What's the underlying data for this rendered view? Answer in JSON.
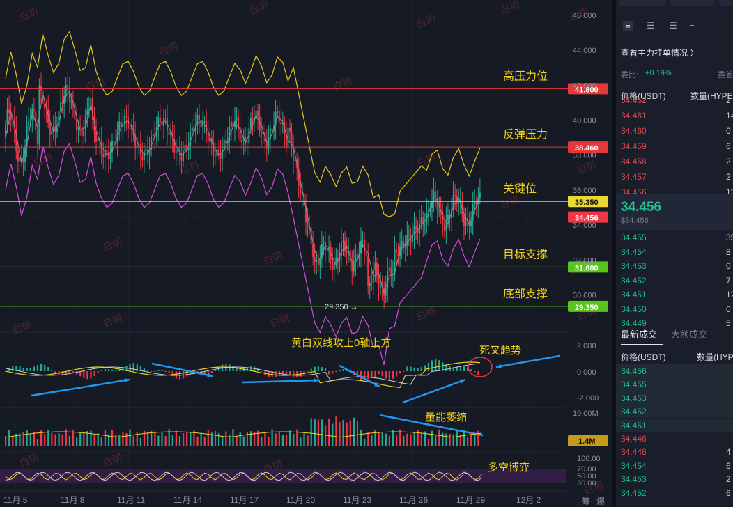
{
  "chart": {
    "price_axis": [
      "48.000",
      "46.000",
      "44.000",
      "42.000",
      "40.000",
      "38.000",
      "36.000",
      "34.000",
      "32.000",
      "30.000",
      "28.000"
    ],
    "macd_axis": [
      "2.000",
      "0.000",
      "-2.000"
    ],
    "vol_axis": [
      "10.00M"
    ],
    "rsi_axis": [
      "100.00",
      "70.00",
      "50.00",
      "30.00"
    ],
    "date_axis": [
      "11月 5",
      "11月 8",
      "11月 11",
      "11月 14",
      "11月 17",
      "11月 20",
      "11月 23",
      "11月 26",
      "11月 29",
      "12月 2"
    ],
    "corner_labels": [
      "筹",
      "爆"
    ],
    "levels": [
      {
        "name": "高压力位",
        "value": "41.800",
        "color": "#e5383b",
        "label_bg": "#e5383b"
      },
      {
        "name": "反弹压力",
        "value": "38.460",
        "color": "#e5383b",
        "label_bg": "#e5383b"
      },
      {
        "name": "关键位",
        "value": "35.350",
        "color": "#e8d830",
        "label_bg": "#e8d830"
      },
      {
        "name": "目标支撑",
        "value": "31.600",
        "color": "#5ac41e",
        "label_bg": "#5ac41e"
      },
      {
        "name": "底部支撑",
        "value": "29.350",
        "color": "#5ac41e",
        "label_bg": "#5ac41e"
      }
    ],
    "current_price_label": "34.456",
    "low_marker": "29.350",
    "volume_label": "1.4M",
    "annotations": {
      "macd_note": "黄白双线攻上0轴上方",
      "death_cross": "死叉趋势",
      "vol_note": "量能萎缩",
      "rsi_note": "多空博弈"
    },
    "watermark": "白玥",
    "colors": {
      "up": "#22ab94",
      "down": "#f23645",
      "boll_upper": "#e6c81c",
      "boll_lower": "#d94ce0",
      "boll_mid": "#8a8f9c",
      "annotation": "#f0d31a",
      "arrow": "#2196f3"
    }
  },
  "panel": {
    "tool_icons": [
      "depth-both-icon",
      "depth-bids-icon",
      "depth-asks-icon",
      "depth-expand-icon"
    ],
    "link": "查看主力挂单情况 〉",
    "weibi_label": "委比:",
    "weibi_value": "+0.19%",
    "weicha_label": "委差",
    "col_price": "价格(USDT)",
    "col_qty": "数量(HYPE)",
    "asks": [
      {
        "price": "34.462",
        "qty": "2"
      },
      {
        "price": "34.461",
        "qty": "14"
      },
      {
        "price": "34.460",
        "qty": "0"
      },
      {
        "price": "34.459",
        "qty": "6"
      },
      {
        "price": "34.458",
        "qty": "2"
      },
      {
        "price": "34.457",
        "qty": "2"
      },
      {
        "price": "34.456",
        "qty": "13"
      }
    ],
    "last_price": "34.456",
    "last_price_usd": "$34.456",
    "bids": [
      {
        "price": "34.455",
        "qty": "35"
      },
      {
        "price": "34.454",
        "qty": "8"
      },
      {
        "price": "34.453",
        "qty": "0"
      },
      {
        "price": "34.452",
        "qty": "7"
      },
      {
        "price": "34.451",
        "qty": "12"
      },
      {
        "price": "34.450",
        "qty": "0"
      },
      {
        "price": "34.449",
        "qty": "5"
      }
    ],
    "trade_tabs": [
      "最新成交",
      "大额成交"
    ],
    "trade_col_price": "价格(USDT)",
    "trade_col_qty": "数量(HYPE)",
    "trades": [
      {
        "price": "34.456",
        "qty": "",
        "side": "up"
      },
      {
        "price": "34.455",
        "qty": "",
        "side": "up"
      },
      {
        "price": "34.453",
        "qty": "",
        "side": "up"
      },
      {
        "price": "34.452",
        "qty": "",
        "side": "up"
      },
      {
        "price": "34.451",
        "qty": "",
        "side": "up"
      },
      {
        "price": "34.446",
        "qty": "",
        "side": "down"
      },
      {
        "price": "34.448",
        "qty": "4",
        "side": "down"
      },
      {
        "price": "34.454",
        "qty": "6",
        "side": "up"
      },
      {
        "price": "34.453",
        "qty": "2",
        "side": "up"
      },
      {
        "price": "34.452",
        "qty": "6",
        "side": "up"
      }
    ]
  }
}
